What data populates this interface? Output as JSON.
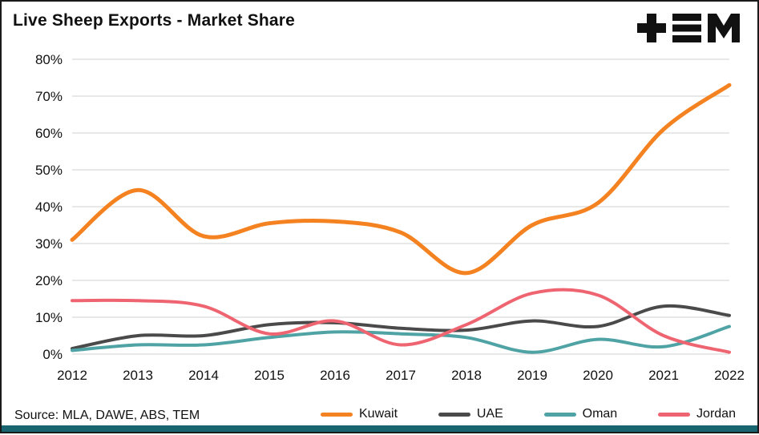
{
  "title": "Live Sheep Exports - Market Share",
  "source": "Source: MLA, DAWE, ABS, TEM",
  "logo_name": "TEM logo",
  "colors": {
    "kuwait": "#F58220",
    "uae": "#4a4a4a",
    "oman": "#4FA3A5",
    "jordan": "#EE6571",
    "gridline": "#d9d9d9",
    "bottom_bar": "#186570",
    "logo": "#111111"
  },
  "chart_data": {
    "type": "line",
    "x": [
      2012,
      2013,
      2014,
      2015,
      2016,
      2017,
      2018,
      2019,
      2020,
      2021,
      2022
    ],
    "series": [
      {
        "name": "Kuwait",
        "color": "#F58220",
        "values": [
          31,
          44.5,
          32,
          35.5,
          36,
          33,
          22,
          35,
          41,
          61,
          73
        ]
      },
      {
        "name": "UAE",
        "color": "#4a4a4a",
        "values": [
          1.5,
          5,
          5,
          8,
          8.5,
          7,
          6.5,
          9,
          7.5,
          13,
          10.5
        ]
      },
      {
        "name": "Oman",
        "color": "#4FA3A5",
        "values": [
          1,
          2.5,
          2.5,
          4.5,
          6,
          5.5,
          4.5,
          0.5,
          4,
          2,
          7.5
        ]
      },
      {
        "name": "Jordan",
        "color": "#EE6571",
        "values": [
          14.5,
          14.5,
          13,
          5.5,
          9,
          2.5,
          8,
          16.5,
          16,
          5,
          0.5
        ]
      }
    ],
    "title": "Live Sheep Exports - Market Share",
    "xlabel": "",
    "ylabel": "",
    "ylim": [
      0,
      80
    ],
    "yticks": [
      "0%",
      "10%",
      "20%",
      "30%",
      "40%",
      "50%",
      "60%",
      "70%",
      "80%"
    ],
    "grid": true,
    "legend_position": "bottom"
  }
}
